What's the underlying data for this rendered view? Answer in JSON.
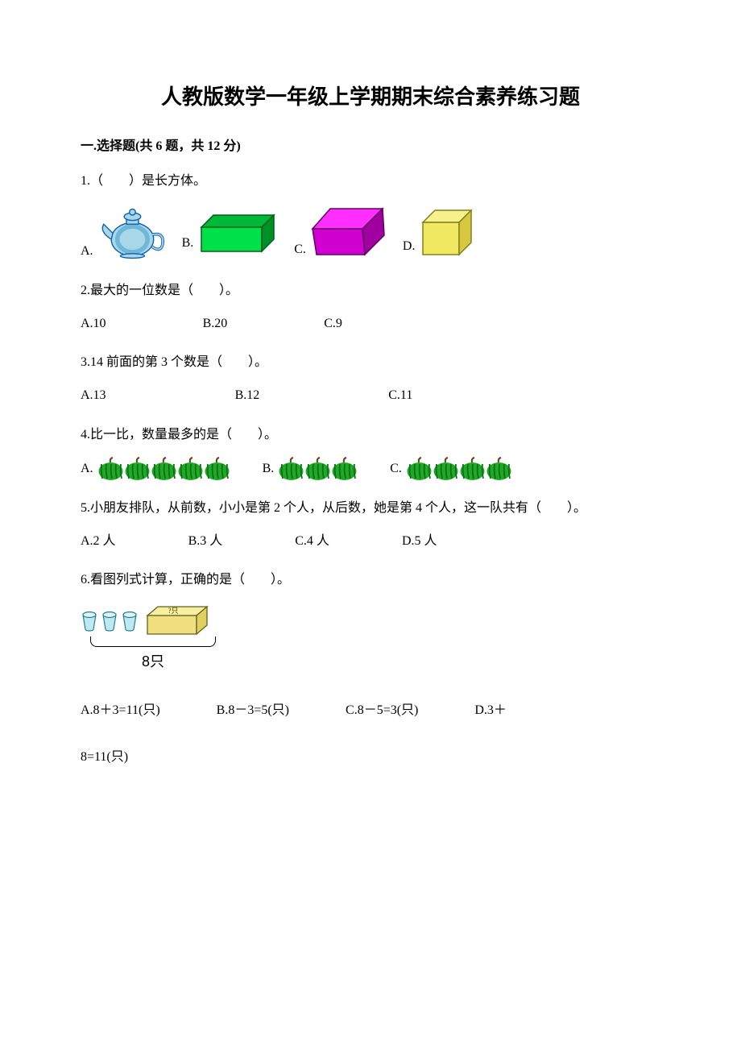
{
  "title": "人教版数学一年级上学期期末综合素养练习题",
  "section1": {
    "header": "一.选择题(共 6 题，共 12 分)"
  },
  "q1": {
    "text": "1.（　　）是长方体。",
    "optA": "A.",
    "optB": "B.",
    "optC": "C.",
    "optD": "D.",
    "teapot": {
      "body_color": "#a8d8e8",
      "outline": "#1060b0",
      "shadow": "#6fb8d8"
    },
    "cuboid": {
      "top_color": "#00b838",
      "front_color": "#00e048",
      "side_color": "#009028",
      "outline": "#006018"
    },
    "trapezoid": {
      "top_color": "#ff30ff",
      "front_color": "#d000d0",
      "side_color": "#a000a0",
      "outline": "#600060"
    },
    "cube": {
      "top_color": "#f8f088",
      "front_color": "#f0e860",
      "side_color": "#d8c840",
      "outline": "#808020"
    }
  },
  "q2": {
    "text": "2.最大的一位数是（　　）。",
    "optA": "A.10",
    "optB": "B.20",
    "optC": "C.9"
  },
  "q3": {
    "text": "3.14 前面的第 3 个数是（　　）。",
    "optA": "A.13",
    "optB": "B.12",
    "optC": "C.11"
  },
  "q4": {
    "text": "4.比一比，数量最多的是（　　）。",
    "optA": "A.",
    "optB": "B.",
    "optC": "C.",
    "countA": 5,
    "countB": 3,
    "countC": 4,
    "watermelon": {
      "body_color": "#20a828",
      "stripe_color": "#0e7010",
      "stem_color": "#6a4018"
    }
  },
  "q5": {
    "text": "5.小朋友排队，从前数，小小是第 2 个人，从后数，她是第 4 个人，这一队共有（　　）。",
    "optA": "A.2 人",
    "optB": "B.3 人",
    "optC": "C.4 人",
    "optD": "D.5 人"
  },
  "q6": {
    "text": "6.看图列式计算，正确的是（　　）。",
    "bracket_label": "8只",
    "box_label": "?只",
    "cup": {
      "body_color": "#c0e8f0",
      "outline": "#208090"
    },
    "box": {
      "top_color": "#f8f0a0",
      "front_color": "#f0e080",
      "side_color": "#e0d060",
      "outline": "#606020"
    },
    "optA": "A.8＋3=11(只)",
    "optB": "B.8－3=5(只)",
    "optC": "C.8－5=3(只)",
    "optD_part1": "D.3＋",
    "optD_part2": "8=11(只)"
  }
}
